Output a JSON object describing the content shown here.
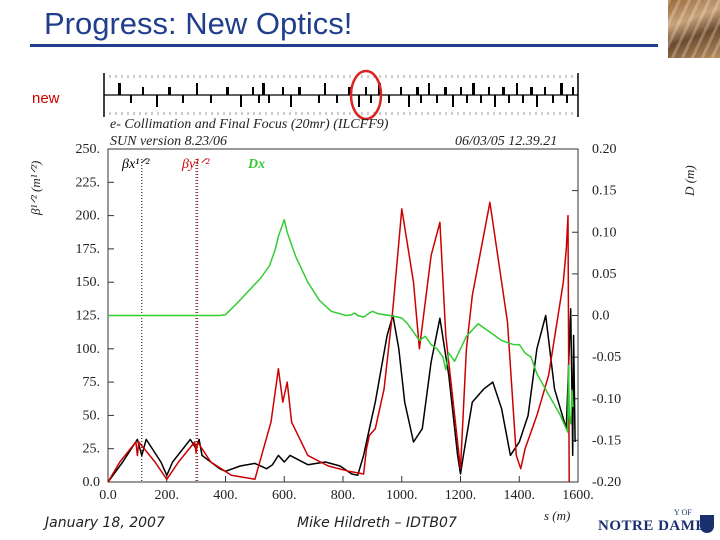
{
  "slide": {
    "title": "Progress: New Optics!",
    "new_label": "new",
    "footer_date": "January 18, 2007",
    "footer_author": "Mike Hildreth – IDTB07",
    "logo_text": "NOTRE DAME",
    "logo_of": "Y OF"
  },
  "chart_data": {
    "type": "line",
    "title": "e- Collimation and Final Focus (20mr) (ILCFF9)",
    "subtitle": "SUN version 8.23/06",
    "timestamp": "06/03/05  12.39.21",
    "xlabel": "s (m)",
    "ylabel": "β¹ᐟ² (m¹ᐟ²)",
    "y2label": "D (m)",
    "xlim": [
      0,
      1600
    ],
    "ylim": [
      0,
      250
    ],
    "y2lim": [
      -0.2,
      0.2
    ],
    "x_ticks": [
      "0.0",
      "200.",
      "400.",
      "600.",
      "800.",
      "1000.",
      "1200.",
      "1400.",
      "1600."
    ],
    "x_tick_values": [
      0,
      200,
      400,
      600,
      800,
      1000,
      1200,
      1400,
      1600
    ],
    "y_ticks": [
      "0.0",
      "25.",
      "50.",
      "75.",
      "100.",
      "125.",
      "150.",
      "175.",
      "200.",
      "225.",
      "250."
    ],
    "y_tick_values": [
      0,
      25,
      50,
      75,
      100,
      125,
      150,
      175,
      200,
      225,
      250
    ],
    "y2_ticks": [
      "0.20",
      "0.15",
      "0.10",
      "0.05",
      "0.0",
      "-0.05",
      "-0.10",
      "-0.15",
      "-0.20"
    ],
    "y2_tick_values": [
      0.2,
      0.15,
      0.1,
      0.05,
      0.0,
      -0.05,
      -0.1,
      -0.15,
      -0.2
    ],
    "legend": [
      "βx¹ᐟ²",
      "βy¹ᐟ²",
      "Dx"
    ],
    "series": [
      {
        "name": "βx¹ᐟ²",
        "color": "#000000",
        "axis": "left",
        "x": [
          0,
          50,
          100,
          115,
          130,
          180,
          200,
          220,
          280,
          300,
          310,
          320,
          380,
          400,
          450,
          500,
          540,
          560,
          580,
          600,
          620,
          680,
          740,
          790,
          830,
          850,
          870,
          890,
          910,
          930,
          950,
          970,
          990,
          1010,
          1040,
          1070,
          1100,
          1130,
          1160,
          1190,
          1200,
          1210,
          1240,
          1280,
          1310,
          1340,
          1370,
          1400,
          1430,
          1460,
          1490,
          1520,
          1560,
          1575,
          1580,
          1582,
          1585,
          1590
        ],
        "y": [
          0,
          15,
          32,
          20,
          32,
          15,
          5,
          15,
          32,
          25,
          32,
          20,
          10,
          8,
          12,
          14,
          10,
          13,
          20,
          15,
          20,
          13,
          15,
          12,
          6,
          5,
          20,
          40,
          60,
          85,
          110,
          125,
          100,
          60,
          30,
          40,
          90,
          123,
          80,
          20,
          6,
          20,
          60,
          70,
          75,
          55,
          20,
          30,
          50,
          100,
          125,
          70,
          40,
          130,
          60,
          20,
          110,
          30
        ]
      },
      {
        "name": "βy¹ᐟ²",
        "color": "#cc0000",
        "axis": "left",
        "x": [
          0,
          40,
          95,
          100,
          105,
          160,
          200,
          240,
          295,
          300,
          305,
          350,
          420,
          500,
          555,
          580,
          595,
          610,
          625,
          680,
          750,
          820,
          870,
          880,
          890,
          910,
          940,
          970,
          1000,
          1040,
          1060,
          1100,
          1130,
          1150,
          1170,
          1200,
          1220,
          1240,
          1300,
          1360,
          1390,
          1405,
          1420,
          1460,
          1500,
          1550,
          1560,
          1566,
          1570
        ],
        "y": [
          0,
          15,
          30,
          20,
          30,
          15,
          2,
          15,
          30,
          22,
          30,
          15,
          5,
          2,
          45,
          85,
          60,
          75,
          45,
          20,
          12,
          8,
          6,
          25,
          35,
          40,
          70,
          130,
          205,
          150,
          100,
          170,
          195,
          110,
          70,
          10,
          100,
          140,
          210,
          120,
          20,
          10,
          25,
          50,
          80,
          150,
          175,
          200,
          0
        ]
      },
      {
        "name": "Dx",
        "color": "#33cc33",
        "axis": "right",
        "x": [
          0,
          200,
          380,
          400,
          440,
          480,
          520,
          550,
          570,
          580,
          590,
          600,
          610,
          620,
          640,
          680,
          720,
          760,
          790,
          810,
          830,
          840,
          850,
          870,
          890,
          900,
          920,
          960,
          1000,
          1020,
          1040,
          1060,
          1080,
          1100,
          1120,
          1140,
          1150,
          1160,
          1180,
          1220,
          1260,
          1300,
          1340,
          1380,
          1400,
          1420,
          1440,
          1460,
          1500,
          1540,
          1565,
          1568,
          1570,
          1575,
          1580,
          1583
        ],
        "y": [
          0,
          0,
          0,
          0.001,
          0.015,
          0.03,
          0.045,
          0.06,
          0.08,
          0.095,
          0.105,
          0.115,
          0.1,
          0.09,
          0.07,
          0.04,
          0.018,
          0.005,
          0.002,
          0,
          0.001,
          0.003,
          0,
          -0.002,
          0.003,
          0.005,
          0.002,
          0,
          -0.003,
          -0.01,
          -0.02,
          -0.03,
          -0.025,
          -0.035,
          -0.04,
          -0.05,
          -0.065,
          -0.045,
          -0.055,
          -0.025,
          -0.01,
          -0.02,
          -0.03,
          -0.035,
          -0.035,
          -0.045,
          -0.05,
          -0.07,
          -0.095,
          -0.12,
          -0.14,
          -0.06,
          -0.12,
          -0.13,
          -0.09,
          -0.11
        ]
      }
    ]
  }
}
